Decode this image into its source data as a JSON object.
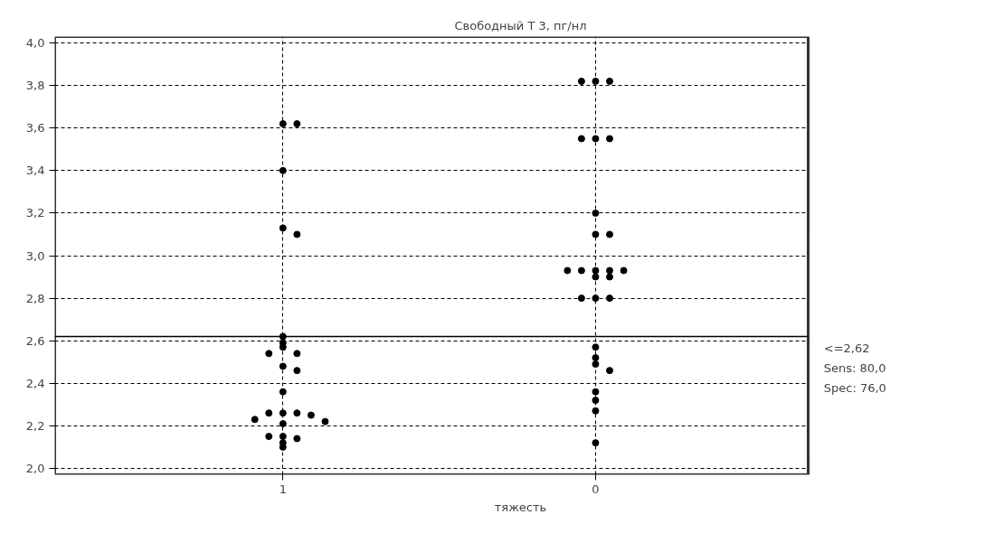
{
  "chart_data": {
    "type": "scatter",
    "title": "Свободный Т 3, пг/нл",
    "xlabel": "тяжесть",
    "categories": [
      "1",
      "0"
    ],
    "series": [
      {
        "color": "#000000",
        "x": [
          "1",
          "1",
          "1",
          "1",
          "1",
          "1",
          "1",
          "1",
          "1",
          "1",
          "1",
          "1",
          "1",
          "1",
          "1",
          "1",
          "1",
          "1",
          "1",
          "1",
          "1",
          "1",
          "1",
          "1",
          "1"
        ],
        "values": [
          3.62,
          3.62,
          3.4,
          3.13,
          3.1,
          2.62,
          2.59,
          2.57,
          2.54,
          2.54,
          2.48,
          2.46,
          2.36,
          2.26,
          2.26,
          2.26,
          2.25,
          2.23,
          2.22,
          2.21,
          2.15,
          2.14,
          2.15,
          2.12,
          2.1
        ]
      },
      {
        "color": "#000000",
        "x": [
          "0",
          "0",
          "0",
          "0",
          "0",
          "0",
          "0",
          "0",
          "0",
          "0",
          "0",
          "0",
          "0",
          "0",
          "0",
          "0",
          "0",
          "0",
          "0",
          "0",
          "0",
          "0",
          "0",
          "0",
          "0",
          "0",
          "0"
        ],
        "values": [
          3.82,
          3.82,
          3.82,
          3.55,
          3.55,
          3.55,
          3.2,
          3.1,
          3.1,
          2.93,
          2.93,
          2.93,
          2.93,
          2.93,
          2.9,
          2.9,
          2.8,
          2.8,
          2.8,
          2.57,
          2.52,
          2.49,
          2.46,
          2.36,
          2.32,
          2.27,
          2.12
        ]
      }
    ],
    "ylim": [
      1.97,
      4.03
    ],
    "yticks": [
      {
        "value": 2.0,
        "label": "2,0"
      },
      {
        "value": 2.2,
        "label": "2,2"
      },
      {
        "value": 2.4,
        "label": "2,4"
      },
      {
        "value": 2.6,
        "label": "2,6"
      },
      {
        "value": 2.8,
        "label": "2,8"
      },
      {
        "value": 3.0,
        "label": "3,0"
      },
      {
        "value": 3.2,
        "label": "3,2"
      },
      {
        "value": 3.4,
        "label": "3,4"
      },
      {
        "value": 3.6,
        "label": "3,6"
      },
      {
        "value": 3.8,
        "label": "3,8"
      },
      {
        "value": 4.0,
        "label": "4,0"
      }
    ],
    "ref_lines": [
      {
        "axis": "y",
        "value": 2.62,
        "label": "<=2,62",
        "color": "#000000",
        "line_style": "solid"
      }
    ],
    "annotations": [
      "Sens: 80,0",
      "Spec: 76,0"
    ],
    "grid": true,
    "marker": "circle"
  }
}
